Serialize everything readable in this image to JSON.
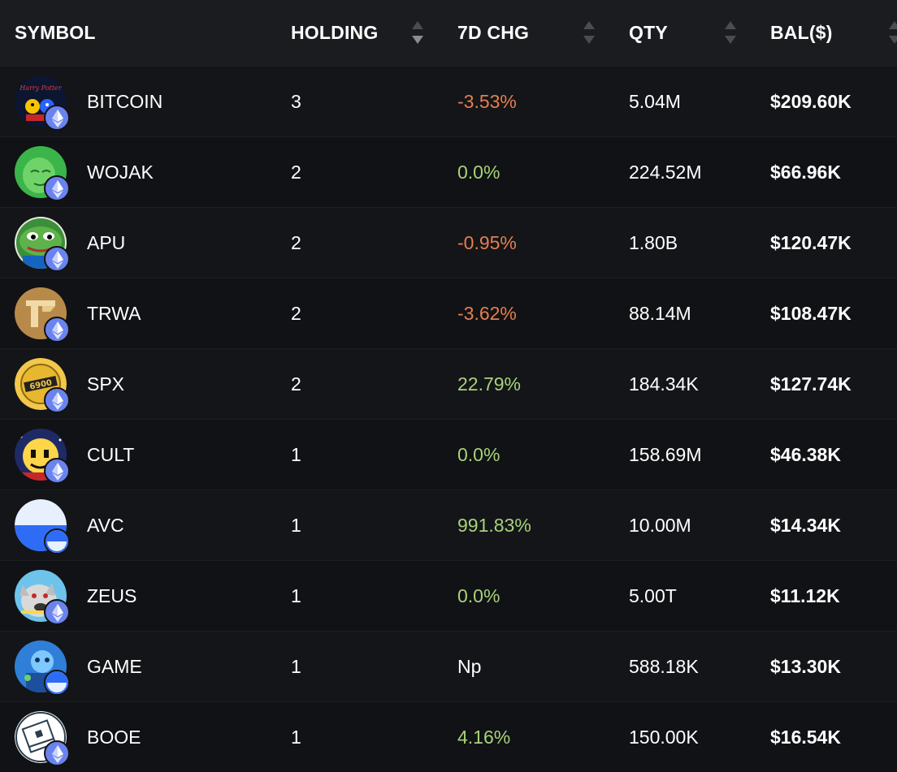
{
  "header": {
    "symbol": "SYMBOL",
    "holding": "HOLDING",
    "chg": "7D CHG",
    "qty": "QTY",
    "bal": "BAL($)"
  },
  "rows": [
    {
      "symbol": "BITCOIN",
      "avatar": "harry-potter-art",
      "badge": "ethereum-icon",
      "holding": "3",
      "chg": "-3.53%",
      "chg_type": "neg",
      "qty": "5.04M",
      "bal": "$209.60K"
    },
    {
      "symbol": "WOJAK",
      "avatar": "wojak-face",
      "badge": "ethereum-icon",
      "holding": "2",
      "chg": "0.0%",
      "chg_type": "pos",
      "qty": "224.52M",
      "bal": "$66.96K"
    },
    {
      "symbol": "APU",
      "avatar": "apu-frog",
      "badge": "ethereum-icon",
      "holding": "2",
      "chg": "-0.95%",
      "chg_type": "neg",
      "qty": "1.80B",
      "bal": "$120.47K"
    },
    {
      "symbol": "TRWA",
      "avatar": "trwa-logo",
      "badge": "ethereum-icon",
      "holding": "2",
      "chg": "-3.62%",
      "chg_type": "neg",
      "qty": "88.14M",
      "bal": "$108.47K"
    },
    {
      "symbol": "SPX",
      "avatar": "spx-coin",
      "badge": "ethereum-icon",
      "holding": "2",
      "chg": "22.79%",
      "chg_type": "pos",
      "qty": "184.34K",
      "bal": "$127.74K"
    },
    {
      "symbol": "CULT",
      "avatar": "cult-face",
      "badge": "ethereum-icon",
      "holding": "1",
      "chg": "0.0%",
      "chg_type": "pos",
      "qty": "158.69M",
      "bal": "$46.38K"
    },
    {
      "symbol": "AVC",
      "avatar": "avc-logo",
      "badge": "chain-icon",
      "holding": "1",
      "chg": "991.83%",
      "chg_type": "pos",
      "qty": "10.00M",
      "bal": "$14.34K"
    },
    {
      "symbol": "ZEUS",
      "avatar": "zeus-dog",
      "badge": "ethereum-icon",
      "holding": "1",
      "chg": "0.0%",
      "chg_type": "pos",
      "qty": "5.00T",
      "bal": "$11.12K"
    },
    {
      "symbol": "GAME",
      "avatar": "game-art",
      "badge": "chain-icon",
      "holding": "1",
      "chg": "Np",
      "chg_type": "neu",
      "qty": "588.18K",
      "bal": "$13.30K"
    },
    {
      "symbol": "BOOE",
      "avatar": "booe-book",
      "badge": "ethereum-icon",
      "holding": "1",
      "chg": "4.16%",
      "chg_type": "pos",
      "qty": "150.00K",
      "bal": "$16.54K"
    }
  ],
  "colors": {
    "negative": "#e47f50",
    "positive": "#a8d27b",
    "eth_badge": "#6a83ee"
  }
}
